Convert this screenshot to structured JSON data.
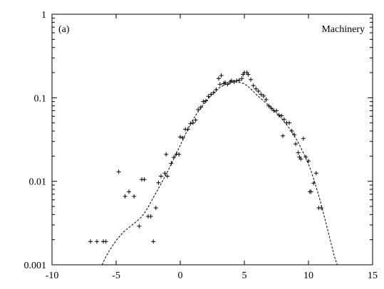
{
  "chart_data": {
    "type": "scatter",
    "title": "Machinery",
    "panel_label": "(a)",
    "xlabel": "",
    "ylabel": "",
    "xlim": [
      -10,
      15
    ],
    "ylim": [
      0.001,
      1
    ],
    "yscale": "log",
    "grid": false,
    "legend": "none",
    "x_ticks": [
      {
        "value": -10,
        "label": "-10"
      },
      {
        "value": -5,
        "label": "-5"
      },
      {
        "value": 0,
        "label": "0"
      },
      {
        "value": 5,
        "label": "5"
      },
      {
        "value": 10,
        "label": "10"
      },
      {
        "value": 15,
        "label": "15"
      }
    ],
    "y_ticks": [
      {
        "value": 0.001,
        "label": "0.001"
      },
      {
        "value": 0.01,
        "label": "0.01"
      },
      {
        "value": 0.1,
        "label": "0.1"
      },
      {
        "value": 1,
        "label": "1"
      }
    ],
    "series": [
      {
        "marker": "plus",
        "points": [
          [
            -7.0,
            0.0019
          ],
          [
            -6.5,
            0.0019
          ],
          [
            -6.0,
            0.0019
          ],
          [
            -5.8,
            0.0019
          ],
          [
            -4.8,
            0.013
          ],
          [
            -4.3,
            0.0066
          ],
          [
            -4.0,
            0.0075
          ],
          [
            -3.6,
            0.0066
          ],
          [
            -3.2,
            0.0029
          ],
          [
            -3.0,
            0.0105
          ],
          [
            -2.8,
            0.0105
          ],
          [
            -2.5,
            0.0038
          ],
          [
            -2.3,
            0.0038
          ],
          [
            -2.1,
            0.0019
          ],
          [
            -1.9,
            0.0048
          ],
          [
            -1.7,
            0.0096
          ],
          [
            -1.5,
            0.0115
          ],
          [
            -1.2,
            0.0125
          ],
          [
            -1.1,
            0.021
          ],
          [
            -1.0,
            0.0115
          ],
          [
            -0.7,
            0.0164
          ],
          [
            -0.5,
            0.0193
          ],
          [
            -0.3,
            0.0212
          ],
          [
            -0.1,
            0.021
          ],
          [
            0.0,
            0.034
          ],
          [
            0.2,
            0.033
          ],
          [
            0.4,
            0.042
          ],
          [
            0.6,
            0.042
          ],
          [
            0.8,
            0.049
          ],
          [
            1.0,
            0.05
          ],
          [
            1.2,
            0.054
          ],
          [
            1.4,
            0.072
          ],
          [
            1.6,
            0.077
          ],
          [
            1.8,
            0.09
          ],
          [
            2.0,
            0.092
          ],
          [
            2.2,
            0.104
          ],
          [
            2.4,
            0.11
          ],
          [
            2.6,
            0.115
          ],
          [
            2.8,
            0.125
          ],
          [
            3.0,
            0.17
          ],
          [
            3.1,
            0.145
          ],
          [
            3.2,
            0.185
          ],
          [
            3.4,
            0.148
          ],
          [
            3.5,
            0.152
          ],
          [
            3.7,
            0.145
          ],
          [
            3.9,
            0.155
          ],
          [
            4.0,
            0.16
          ],
          [
            4.2,
            0.155
          ],
          [
            4.4,
            0.16
          ],
          [
            4.6,
            0.162
          ],
          [
            4.8,
            0.17
          ],
          [
            4.9,
            0.19
          ],
          [
            5.0,
            0.2
          ],
          [
            5.2,
            0.2
          ],
          [
            5.3,
            0.19
          ],
          [
            5.5,
            0.165
          ],
          [
            5.7,
            0.14
          ],
          [
            5.9,
            0.128
          ],
          [
            6.1,
            0.12
          ],
          [
            6.3,
            0.11
          ],
          [
            6.5,
            0.105
          ],
          [
            6.7,
            0.095
          ],
          [
            6.9,
            0.08
          ],
          [
            7.1,
            0.075
          ],
          [
            7.3,
            0.07
          ],
          [
            7.5,
            0.07
          ],
          [
            7.7,
            0.062
          ],
          [
            7.9,
            0.061
          ],
          [
            8.0,
            0.035
          ],
          [
            8.1,
            0.055
          ],
          [
            8.3,
            0.05
          ],
          [
            8.5,
            0.05
          ],
          [
            8.7,
            0.04
          ],
          [
            8.9,
            0.036
          ],
          [
            9.0,
            0.028
          ],
          [
            9.2,
            0.022
          ],
          [
            9.3,
            0.0195
          ],
          [
            9.4,
            0.0185
          ],
          [
            9.6,
            0.0325
          ],
          [
            9.8,
            0.0195
          ],
          [
            10.0,
            0.0175
          ],
          [
            10.1,
            0.0075
          ],
          [
            10.2,
            0.0075
          ],
          [
            10.4,
            0.0095
          ],
          [
            10.6,
            0.0125
          ],
          [
            10.8,
            0.0048
          ],
          [
            11.0,
            0.0048
          ]
        ]
      },
      {
        "style": "dashed",
        "points": [
          [
            -6.1,
            0.001
          ],
          [
            -5.5,
            0.0015
          ],
          [
            -4.5,
            0.0024
          ],
          [
            -3.0,
            0.0038
          ],
          [
            -2.0,
            0.0068
          ],
          [
            -1.0,
            0.013
          ],
          [
            0.0,
            0.027
          ],
          [
            1.0,
            0.055
          ],
          [
            2.0,
            0.09
          ],
          [
            3.0,
            0.13
          ],
          [
            4.0,
            0.152
          ],
          [
            4.6,
            0.153
          ],
          [
            5.2,
            0.14
          ],
          [
            6.0,
            0.107
          ],
          [
            7.0,
            0.078
          ],
          [
            8.0,
            0.054
          ],
          [
            9.0,
            0.033
          ],
          [
            10.0,
            0.016
          ],
          [
            10.6,
            0.0085
          ],
          [
            11.0,
            0.0052
          ],
          [
            11.5,
            0.0026
          ],
          [
            12.0,
            0.0013
          ],
          [
            12.25,
            0.001
          ]
        ]
      }
    ]
  }
}
